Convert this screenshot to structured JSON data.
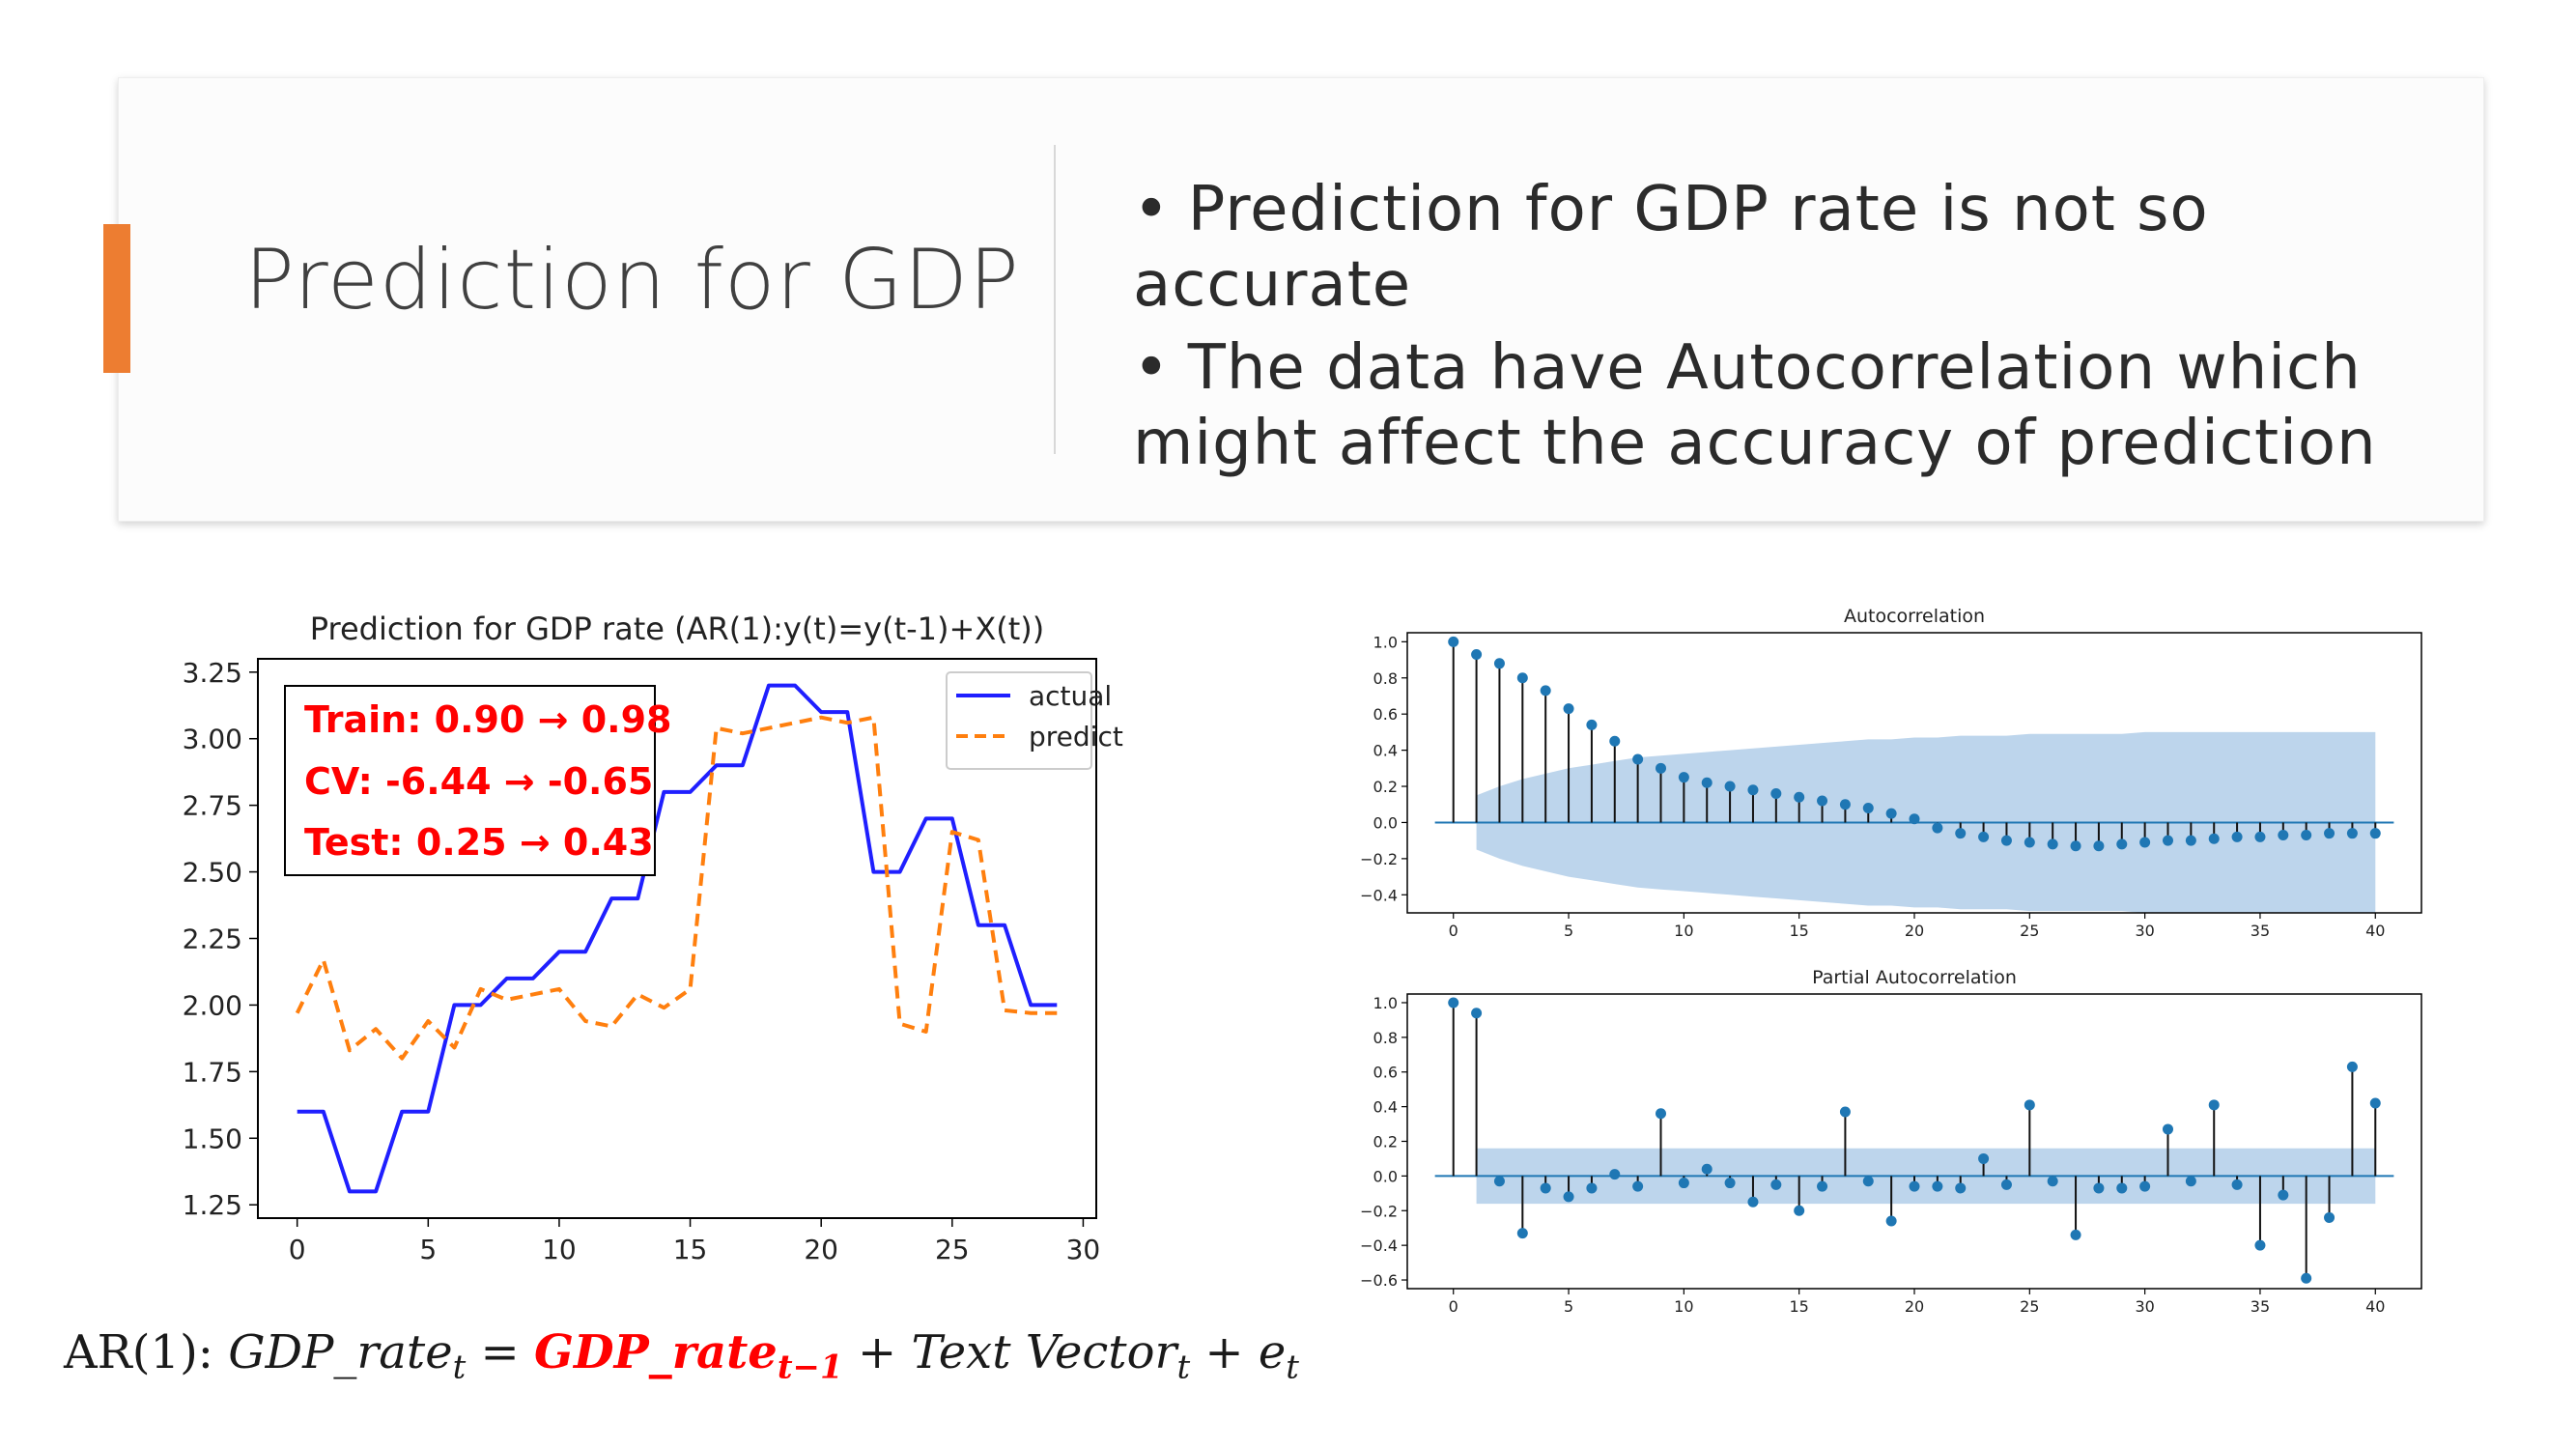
{
  "slide": {
    "title": "Prediction for GDP",
    "bullets": [
      "Prediction for GDP rate is not so accurate",
      "The data have Autocorrelation which might affect the accuracy of prediction"
    ],
    "bullet_symbol": "•",
    "accent_color": "#ed7d31"
  },
  "formula": {
    "lhs_prefix": "AR(1): ",
    "lhs_var": "GDP_rate",
    "lhs_sub": "t",
    "eq": " = ",
    "lag_var": "GDP_rate",
    "lag_sub": "t−1",
    "plus1": " + ",
    "text_var": "Text Vector",
    "text_sub": "t",
    "plus2": " + ",
    "err_var": "e",
    "err_sub": "t"
  },
  "chart_data": [
    {
      "type": "line",
      "title": "Prediction for GDP rate (AR(1):y(t)=y(t-1)+X(t))",
      "xlim": [
        -1.5,
        30.5
      ],
      "ylim": [
        1.2,
        3.3
      ],
      "x_ticks": [
        0,
        5,
        10,
        15,
        20,
        25,
        30
      ],
      "y_ticks": [
        1.25,
        1.5,
        1.75,
        2.0,
        2.25,
        2.5,
        2.75,
        3.0,
        3.25
      ],
      "y_tick_labels": [
        "1.25",
        "1.50",
        "1.75",
        "2.00",
        "2.25",
        "2.50",
        "2.75",
        "3.00",
        "3.25"
      ],
      "legend_position": "top-right",
      "series": [
        {
          "name": "actual",
          "color": "#1f1fff",
          "style": "solid",
          "step": true,
          "x": [
            0,
            1,
            2,
            3,
            4,
            5,
            6,
            7,
            8,
            9,
            10,
            11,
            12,
            13,
            14,
            15,
            16,
            17,
            18,
            19,
            20,
            21,
            22,
            23,
            24,
            25,
            26,
            27,
            28,
            29
          ],
          "values": [
            1.6,
            1.6,
            1.3,
            1.3,
            1.6,
            1.6,
            2.0,
            2.0,
            2.1,
            2.1,
            2.2,
            2.2,
            2.4,
            2.4,
            2.8,
            2.8,
            2.9,
            2.9,
            3.2,
            3.2,
            3.1,
            3.1,
            2.5,
            2.5,
            2.7,
            2.7,
            2.3,
            2.3,
            2.0,
            2.0
          ]
        },
        {
          "name": "predict",
          "color": "#ff7f0e",
          "style": "dashed",
          "x": [
            0,
            1,
            2,
            3,
            4,
            5,
            6,
            7,
            8,
            9,
            10,
            11,
            12,
            13,
            14,
            15,
            16,
            17,
            18,
            19,
            20,
            21,
            22,
            23,
            24,
            25,
            26,
            27,
            28,
            29
          ],
          "values": [
            1.97,
            2.17,
            1.83,
            1.91,
            1.8,
            1.94,
            1.84,
            2.06,
            2.02,
            2.04,
            2.06,
            1.94,
            1.92,
            2.04,
            1.99,
            2.06,
            3.04,
            3.02,
            3.04,
            3.06,
            3.08,
            3.06,
            3.08,
            1.93,
            1.9,
            2.65,
            2.62,
            1.98,
            1.97,
            1.97
          ]
        }
      ],
      "annotations": [
        {
          "text": "Train: 0.90 → 0.98",
          "color": "#ff0000"
        },
        {
          "text": "CV: -6.44 → -0.65",
          "color": "#ff0000"
        },
        {
          "text": "Test: 0.25 → 0.43",
          "color": "#ff0000"
        }
      ]
    },
    {
      "type": "stem",
      "title": "Autocorrelation",
      "xlim": [
        -2,
        42
      ],
      "ylim": [
        -0.5,
        1.05
      ],
      "x_ticks": [
        0,
        5,
        10,
        15,
        20,
        25,
        30,
        35,
        40
      ],
      "y_ticks": [
        -0.4,
        -0.2,
        0.0,
        0.2,
        0.4,
        0.6,
        0.8,
        1.0
      ],
      "y_tick_labels": [
        "−0.4",
        "−0.2",
        "0.0",
        "0.2",
        "0.4",
        "0.6",
        "0.8",
        "1.0"
      ],
      "marker_color": "#1f77b4",
      "band_color": "#bdd5ec",
      "band_upper": [
        0,
        0.15,
        0.2,
        0.24,
        0.27,
        0.3,
        0.32,
        0.34,
        0.36,
        0.37,
        0.38,
        0.39,
        0.4,
        0.41,
        0.42,
        0.43,
        0.44,
        0.45,
        0.46,
        0.46,
        0.47,
        0.47,
        0.48,
        0.48,
        0.48,
        0.49,
        0.49,
        0.49,
        0.49,
        0.49,
        0.5,
        0.5,
        0.5,
        0.5,
        0.5,
        0.5,
        0.5,
        0.5,
        0.5,
        0.5,
        0.5
      ],
      "values": [
        1.0,
        0.93,
        0.88,
        0.8,
        0.73,
        0.63,
        0.54,
        0.45,
        0.35,
        0.3,
        0.25,
        0.22,
        0.2,
        0.18,
        0.16,
        0.14,
        0.12,
        0.1,
        0.08,
        0.05,
        0.02,
        -0.03,
        -0.06,
        -0.08,
        -0.1,
        -0.11,
        -0.12,
        -0.13,
        -0.13,
        -0.12,
        -0.11,
        -0.1,
        -0.1,
        -0.09,
        -0.08,
        -0.08,
        -0.07,
        -0.07,
        -0.06,
        -0.06,
        -0.06
      ]
    },
    {
      "type": "stem",
      "title": "Partial Autocorrelation",
      "xlim": [
        -2,
        42
      ],
      "ylim": [
        -0.65,
        1.05
      ],
      "x_ticks": [
        0,
        5,
        10,
        15,
        20,
        25,
        30,
        35,
        40
      ],
      "y_ticks": [
        -0.6,
        -0.4,
        -0.2,
        0.0,
        0.2,
        0.4,
        0.6,
        0.8,
        1.0
      ],
      "y_tick_labels": [
        "−0.6",
        "−0.4",
        "−0.2",
        "0.0",
        "0.2",
        "0.4",
        "0.6",
        "0.8",
        "1.0"
      ],
      "marker_color": "#1f77b4",
      "band_color": "#bdd5ec",
      "band_upper": [
        0,
        0.16,
        0.16,
        0.16,
        0.16,
        0.16,
        0.16,
        0.16,
        0.16,
        0.16,
        0.16,
        0.16,
        0.16,
        0.16,
        0.16,
        0.16,
        0.16,
        0.16,
        0.16,
        0.16,
        0.16,
        0.16,
        0.16,
        0.16,
        0.16,
        0.16,
        0.16,
        0.16,
        0.16,
        0.16,
        0.16,
        0.16,
        0.16,
        0.16,
        0.16,
        0.16,
        0.16,
        0.16,
        0.16,
        0.16,
        0.16
      ],
      "values": [
        1.0,
        0.94,
        -0.03,
        -0.33,
        -0.07,
        -0.12,
        -0.07,
        0.01,
        -0.06,
        0.36,
        -0.04,
        0.04,
        -0.04,
        -0.15,
        -0.05,
        -0.2,
        -0.06,
        0.37,
        -0.03,
        -0.26,
        -0.06,
        -0.06,
        -0.07,
        0.1,
        -0.05,
        0.41,
        -0.03,
        -0.34,
        -0.07,
        -0.07,
        -0.06,
        0.27,
        -0.03,
        0.41,
        -0.05,
        -0.4,
        -0.11,
        -0.59,
        -0.24,
        0.63,
        0.42
      ]
    }
  ]
}
